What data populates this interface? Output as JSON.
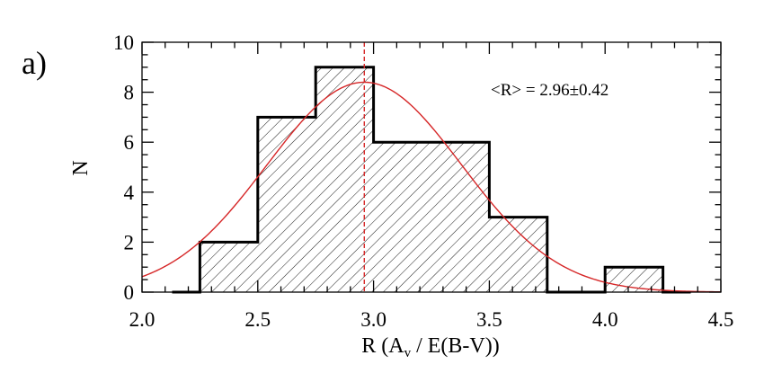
{
  "chart_data": {
    "type": "bar",
    "panel_label": "a)",
    "xlabel": {
      "main": "R (A",
      "sub": "v",
      "rest": " / E(B-V))"
    },
    "ylabel": "N",
    "xlim": [
      2.0,
      4.5
    ],
    "ylim": [
      0,
      10
    ],
    "x_ticks": [
      "2.0",
      "2.5",
      "3.0",
      "3.5",
      "4.0",
      "4.5"
    ],
    "y_ticks": [
      "0",
      "2",
      "4",
      "6",
      "8",
      "10"
    ],
    "bin_edges": [
      2.25,
      2.5,
      2.75,
      3.0,
      3.25,
      3.5,
      3.75,
      4.0,
      4.25
    ],
    "values": [
      2,
      7,
      9,
      6,
      6,
      3,
      0,
      1
    ],
    "empty_bin_extents": {
      "left": 2.13,
      "right": 4.37
    },
    "gaussian_fit": {
      "mean": 2.96,
      "sigma": 0.42,
      "peak": 8.4
    },
    "mean_line_x": 2.96,
    "annotation": "<R> = 2.96±0.42",
    "colors": {
      "histogram": "#000000",
      "hatch": "#000000",
      "fit": "#d62728",
      "mean_line": "#d62728"
    },
    "grid": false,
    "legend": "none"
  }
}
